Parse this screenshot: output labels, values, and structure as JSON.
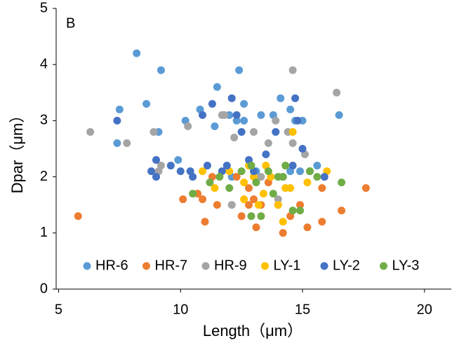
{
  "chart_data": {
    "type": "scatter",
    "annotation": "B",
    "x_label": "Length（μm）",
    "y_label": "Dpar（μm）",
    "xlim": [
      4.9,
      21.1
    ],
    "xticks": [
      5,
      10,
      15,
      20
    ],
    "ylim": [
      0,
      5
    ],
    "yticks": [
      0,
      1,
      2,
      3,
      4,
      5
    ],
    "grid": false,
    "legend": "bottom",
    "series": [
      {
        "name": "HR-6",
        "color": "#5b9bd5",
        "x": [
          8.2,
          9.2,
          12.4,
          7.5,
          8.6,
          7.4,
          9.1,
          10.2,
          10.8,
          11.5,
          11.4,
          12.0,
          12.3,
          12.6,
          13.3,
          13.8,
          14.1,
          14.5,
          14.7,
          15.0,
          16.5,
          9.9,
          12.1,
          13.1,
          14.5,
          15.6,
          14.9,
          12.6
        ],
        "values": [
          4.2,
          3.9,
          3.9,
          3.2,
          3.3,
          2.6,
          2.8,
          3.0,
          3.2,
          3.6,
          2.9,
          3.1,
          3.0,
          3.3,
          3.1,
          3.1,
          3.4,
          3.2,
          3.0,
          3.0,
          3.1,
          2.3,
          2.0,
          2.1,
          2.1,
          2.2,
          2.1,
          3.0
        ]
      },
      {
        "name": "HR-7",
        "color": "#ed7d31",
        "x": [
          5.8,
          10.1,
          10.7,
          10.9,
          11.0,
          11.5,
          11.3,
          12.3,
          12.5,
          12.8,
          13.0,
          13.1,
          13.3,
          14.2,
          14.5,
          14.9,
          15.2,
          15.8,
          16.6,
          17.6,
          15.8,
          13.6,
          14.0,
          12.8
        ],
        "values": [
          1.3,
          1.6,
          1.7,
          1.6,
          1.2,
          1.5,
          2.0,
          2.0,
          1.3,
          1.8,
          1.6,
          1.1,
          1.5,
          1.0,
          1.3,
          1.5,
          1.1,
          1.2,
          1.4,
          1.8,
          1.8,
          1.9,
          1.5,
          1.5
        ]
      },
      {
        "name": "HR-9",
        "color": "#a5a5a5",
        "x": [
          6.3,
          7.8,
          8.9,
          9.2,
          10.3,
          11.7,
          12.2,
          13.0,
          13.6,
          13.9,
          14.4,
          14.6,
          16.4,
          14.6,
          12.1,
          13.3,
          14.0,
          15.1,
          11.8,
          9.1
        ],
        "values": [
          2.8,
          2.6,
          2.8,
          2.2,
          2.9,
          3.1,
          2.7,
          2.8,
          2.6,
          3.0,
          2.8,
          3.9,
          3.5,
          2.6,
          1.5,
          2.0,
          1.6,
          2.4,
          3.1,
          2.1
        ]
      },
      {
        "name": "LY-1",
        "color": "#ffc000",
        "x": [
          10.9,
          11.4,
          12.0,
          12.6,
          12.8,
          13.2,
          13.4,
          13.7,
          14.0,
          14.3,
          14.6,
          14.5,
          15.2,
          16.0,
          12.6,
          14.2,
          13.0,
          13.5
        ],
        "values": [
          2.1,
          1.8,
          2.1,
          1.9,
          2.2,
          1.5,
          1.7,
          2.0,
          1.5,
          1.8,
          2.8,
          1.8,
          1.9,
          2.1,
          1.6,
          1.2,
          2.0,
          2.2
        ]
      },
      {
        "name": "LY-2",
        "color": "#4472c4",
        "x": [
          7.4,
          9.0,
          8.8,
          9.0,
          9.6,
          10.0,
          10.4,
          10.5,
          10.9,
          11.3,
          11.1,
          11.7,
          12.1,
          12.5,
          12.3,
          11.9,
          12.8,
          13.0,
          13.5,
          14.2,
          14.7,
          14.8,
          15.0,
          15.3,
          15.9,
          14.6,
          13.9
        ],
        "values": [
          3.0,
          2.3,
          2.1,
          2.0,
          2.2,
          2.1,
          2.1,
          2.0,
          3.1,
          3.3,
          2.2,
          2.1,
          3.4,
          2.8,
          3.1,
          2.2,
          2.3,
          2.1,
          2.4,
          2.0,
          3.4,
          3.0,
          2.5,
          2.1,
          2.0,
          2.2,
          2.8
        ]
      },
      {
        "name": "LY-3",
        "color": "#70ad47",
        "x": [
          10.5,
          11.2,
          11.6,
          12.0,
          12.5,
          12.9,
          13.1,
          13.3,
          13.6,
          13.8,
          14.0,
          14.3,
          14.6,
          14.9,
          15.3,
          15.6,
          16.6,
          12.9,
          14.2
        ],
        "values": [
          1.7,
          1.9,
          2.0,
          1.8,
          2.1,
          2.2,
          1.9,
          1.3,
          2.1,
          1.7,
          2.0,
          2.2,
          1.4,
          1.4,
          2.1,
          2.0,
          1.9,
          1.3,
          2.0
        ]
      }
    ]
  }
}
